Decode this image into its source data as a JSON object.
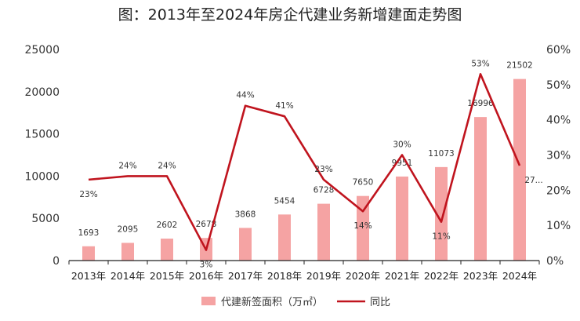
{
  "chart_data": {
    "type": "bar",
    "title": "图：2013年至2024年房企代建业务新增建面走势图",
    "categories": [
      "2013年",
      "2014年",
      "2015年",
      "2016年",
      "2017年",
      "2018年",
      "2019年",
      "2020年",
      "2021年",
      "2022年",
      "2023年",
      "2024年"
    ],
    "series": [
      {
        "name": "代建新签面积（万㎡）",
        "type": "bar",
        "axis": "left",
        "values": [
          1693,
          2095,
          2602,
          2678,
          3868,
          5454,
          6728,
          7650,
          9951,
          11073,
          16996,
          21502
        ],
        "labels": [
          "1693",
          "2095",
          "2602",
          "2678",
          "3868",
          "5454",
          "6728",
          "7650",
          "9951",
          "11073",
          "16996",
          "21502"
        ]
      },
      {
        "name": "同比",
        "type": "line",
        "axis": "right",
        "values": [
          23,
          24,
          24,
          3,
          44,
          41,
          23,
          14,
          30,
          11,
          53,
          27
        ],
        "labels": [
          "23%",
          "24%",
          "24%",
          "3%",
          "44%",
          "41%",
          "23%",
          "14%",
          "30%",
          "11%",
          "53%",
          "27..."
        ]
      }
    ],
    "y_left": {
      "min": 0,
      "max": 25000,
      "ticks": [
        "0",
        "5000",
        "10000",
        "15000",
        "20000",
        "25000"
      ]
    },
    "y_right": {
      "min": 0,
      "max": 60,
      "ticks": [
        "0%",
        "10%",
        "20%",
        "30%",
        "40%",
        "50%",
        "60%"
      ]
    },
    "grid": false,
    "legend_position": "bottom",
    "colors": {
      "bar": "#f5a3a3",
      "line": "#c0141e"
    }
  }
}
